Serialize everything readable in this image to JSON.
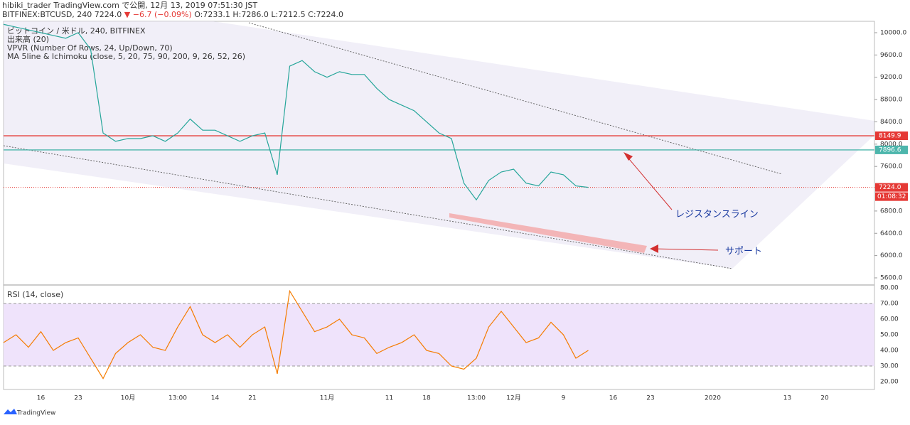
{
  "header": {
    "publisher": "hibiki_trader TradingView.com で公開, 12月 13, 2019 07:51:30 JST",
    "symbol": "BITFINEX:BTCUSD, 240 7224.0",
    "change": "▼ −6.7 (−0.09%)",
    "ohlc": "O:7233.1 H:7286.0 L:7212.5 C:7224.0"
  },
  "legend": [
    "ビットコイン / 米ドル, 240, BITFINEX",
    "出来高 (20)",
    "VPVR (Number Of Rows, 24, Up/Down, 70)",
    "MA 5line & Ichimoku (close, 5, 20, 75, 90, 200, 9, 26, 52, 26)"
  ],
  "annotations": {
    "resistance": "レジスタンスライン",
    "support": "サポート"
  },
  "footer": "TradingView",
  "chart_data": {
    "type": "line",
    "categories": [
      null,
      null,
      null,
      "16",
      null,
      null,
      "23",
      null,
      null,
      null,
      "10月",
      null,
      null,
      null,
      "13:00",
      null,
      null,
      "14",
      null,
      null,
      "21",
      null,
      null,
      null,
      null,
      null,
      "11月",
      null,
      null,
      null,
      null,
      "11",
      null,
      null,
      "18",
      null,
      null,
      null,
      "13:00",
      null,
      null,
      "12月",
      null,
      null,
      null,
      "9",
      null,
      null,
      null,
      "16",
      null,
      null,
      "23",
      null,
      null,
      null,
      null,
      "2020",
      null,
      null,
      null,
      null,
      null,
      "13",
      null,
      null,
      "20",
      null,
      null,
      null,
      null
    ],
    "series": [
      {
        "name": "ビットコイン / 米ドル, 240, BITFINEX",
        "color": "#26a69a",
        "axis": "y",
        "values": [
          10150,
          10100,
          10050,
          10000,
          9950,
          9900,
          10000,
          9700,
          8200,
          8050,
          8100,
          8100,
          8150,
          8050,
          8200,
          8450,
          8250,
          8250,
          8150,
          8050,
          8150,
          8200,
          7450,
          9400,
          9500,
          9300,
          9200,
          9300,
          9250,
          9250,
          9000,
          8800,
          8700,
          8600,
          8400,
          8200,
          8100,
          7300,
          7000,
          7350,
          7500,
          7550,
          7300,
          7250,
          7500,
          7450,
          7250,
          7224,
          null,
          null,
          null,
          null,
          null,
          null,
          null,
          null,
          null,
          null,
          null,
          null,
          null,
          null,
          null,
          null,
          null,
          null,
          null,
          null,
          null,
          null,
          null
        ]
      },
      {
        "name": "RSI (14, close)",
        "color": "#f57c00",
        "axis": "y2",
        "values": [
          45,
          50,
          42,
          52,
          40,
          45,
          48,
          35,
          22,
          38,
          45,
          50,
          42,
          40,
          55,
          68,
          50,
          45,
          50,
          42,
          50,
          55,
          25,
          78,
          65,
          52,
          55,
          60,
          50,
          48,
          38,
          42,
          45,
          50,
          40,
          38,
          30,
          28,
          35,
          55,
          65,
          55,
          45,
          48,
          58,
          50,
          35,
          40,
          null,
          null,
          null,
          null,
          null,
          null,
          null,
          null,
          null,
          null,
          null,
          null,
          null,
          null,
          null,
          null,
          null,
          null,
          null,
          null,
          null,
          null,
          null
        ]
      }
    ],
    "ylim": [
      5485,
      10204
    ],
    "yticks": [
      {
        "value": 10000,
        "label": "10000.0"
      },
      {
        "value": 9600,
        "label": "9600.0"
      },
      {
        "value": 9200,
        "label": "9200.0"
      },
      {
        "value": 8800,
        "label": "8800.0"
      },
      {
        "value": 8400,
        "label": "8400.0"
      },
      {
        "value": 8000,
        "label": "8000.0"
      },
      {
        "value": 7600,
        "label": "7600.0"
      },
      {
        "value": 6800,
        "label": "6800.0"
      },
      {
        "value": 6400,
        "label": "6400.0"
      },
      {
        "value": 6000,
        "label": "6000.0"
      },
      {
        "value": 5600,
        "label": "5600.0"
      }
    ],
    "y2lim": [
      15,
      81.4
    ],
    "y2ticks": [
      {
        "value": 80,
        "label": "80.00"
      },
      {
        "value": 70,
        "label": "70.00"
      },
      {
        "value": 60,
        "label": "60.00"
      },
      {
        "value": 50,
        "label": "50.00"
      },
      {
        "value": 40,
        "label": "40.00"
      },
      {
        "value": 30,
        "label": "30.00"
      },
      {
        "value": 20,
        "label": "20.00"
      }
    ],
    "levels": [
      {
        "value": 8149.9,
        "color": "#e53935"
      },
      {
        "value": 7896.6,
        "color": "#4db6ac"
      },
      {
        "value": 7224,
        "label": "7224.0",
        "color": "#e53935"
      }
    ],
    "countdown": "01:08:32"
  }
}
